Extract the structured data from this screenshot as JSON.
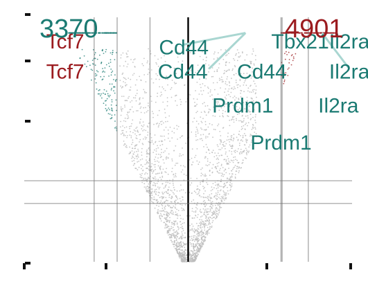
{
  "chart_data": {
    "type": "scatter",
    "title": "",
    "xlabel": "",
    "ylabel": "",
    "xlim": [
      -3,
      3
    ],
    "ylim": [
      0,
      8.6
    ],
    "grid": false,
    "legend": "none",
    "reference_lines": {
      "vertical": [
        -1.72,
        -1.3,
        -0.7,
        0,
        1.7,
        1.72,
        2.2
      ],
      "horizontal": [
        2.85,
        2.05
      ]
    },
    "counts": {
      "down": "3370",
      "up": "4901"
    },
    "highlighted_genes": [
      {
        "gene": "Tcf7",
        "x": -2.25,
        "y": 7.5,
        "label": "Tcf7",
        "color": "#9b1b1f"
      },
      {
        "gene": "Tcf7",
        "x": -2.25,
        "y": 6.45,
        "label": "Tcf7",
        "color": "#9b1b1f"
      },
      {
        "gene": "Cd44",
        "x": -0.08,
        "y": 7.3,
        "label": "Cd44",
        "color": "#1a7a72"
      },
      {
        "gene": "Cd44",
        "x": -0.1,
        "y": 6.45,
        "label": "Cd44",
        "color": "#1a7a72"
      },
      {
        "gene": "Cd44",
        "x": 1.35,
        "y": 6.45,
        "label": "Cd44",
        "color": "#1a7a72"
      },
      {
        "gene": "Tbx21",
        "x": 2.05,
        "y": 7.5,
        "label": "Tbx21",
        "color": "#1a7a72"
      },
      {
        "gene": "Il2ra",
        "x": 2.95,
        "y": 7.5,
        "label": "Il2ra",
        "color": "#1a7a72"
      },
      {
        "gene": "Il2ra",
        "x": 2.95,
        "y": 6.45,
        "label": "Il2ra",
        "color": "#1a7a72"
      },
      {
        "gene": "Il2ra",
        "x": 2.75,
        "y": 5.25,
        "label": "Il2ra",
        "color": "#1a7a72"
      },
      {
        "gene": "Prdm1",
        "x": 1.0,
        "y": 5.25,
        "label": "Prdm1",
        "color": "#1a7a72"
      },
      {
        "gene": "Prdm1",
        "x": 1.7,
        "y": 3.95,
        "label": "Prdm1",
        "color": "#1a7a72"
      }
    ],
    "colors": {
      "down": "#1a7a72",
      "up": "#9b1b1f",
      "ns": "#bdbdbd",
      "lines": "#6e6e6e",
      "zero_line": "#000000",
      "connector": "#a9d6d1"
    }
  }
}
